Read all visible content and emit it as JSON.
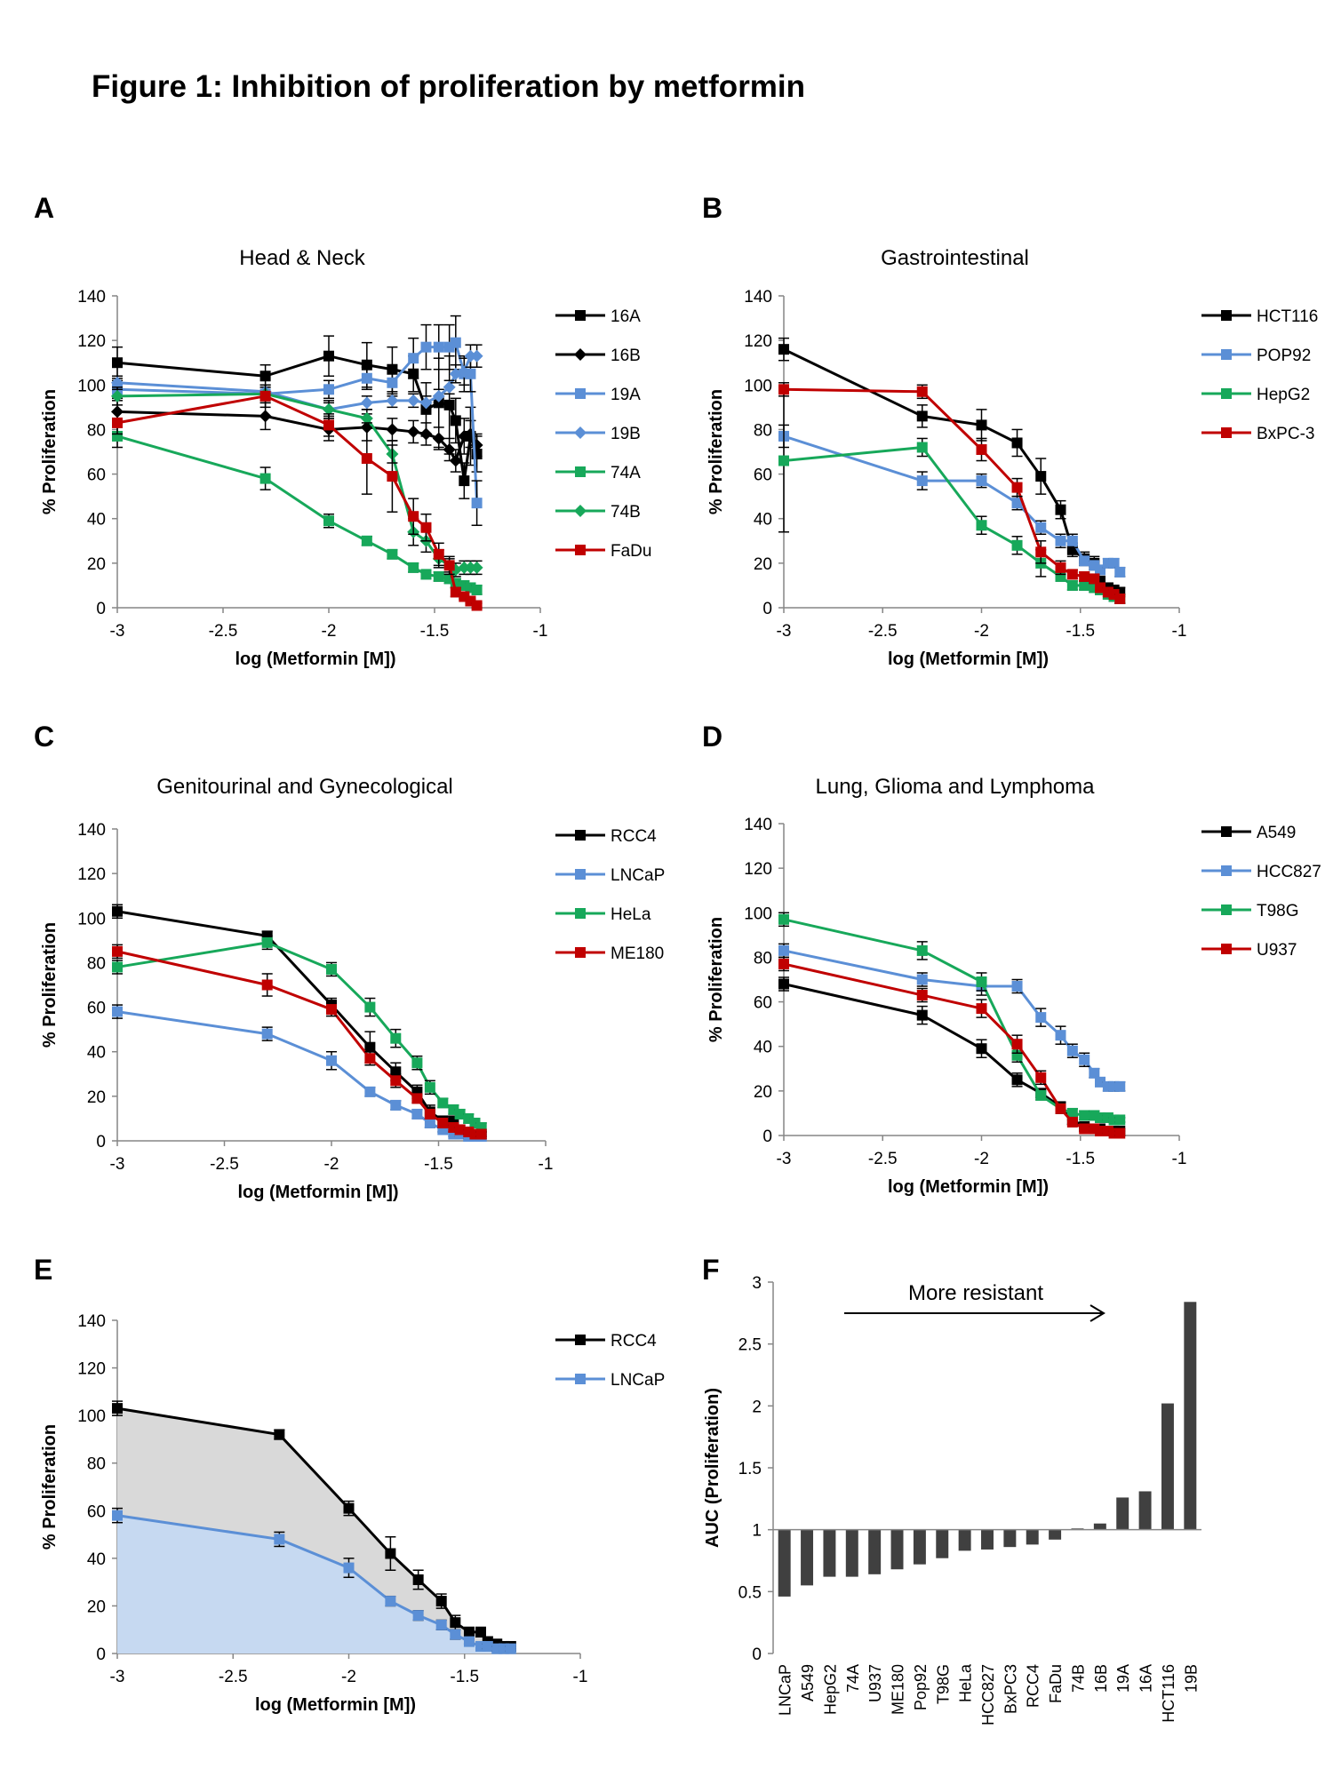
{
  "figure_title": "Figure 1: Inhibition of proliferation by metformin",
  "chart_data": [
    {
      "panel": "A",
      "type": "line",
      "title": "Head & Neck",
      "xlabel": "log (Metformin [M])",
      "ylabel": "% Proliferation",
      "xlim": [
        -3,
        -1
      ],
      "ylim": [
        0,
        140
      ],
      "xticks": [
        -3,
        -2.5,
        -2,
        -1.5,
        -1
      ],
      "yticks": [
        0,
        20,
        40,
        60,
        80,
        100,
        120,
        140
      ],
      "xtick_labels": [
        "-3",
        "-2.5",
        "-2",
        "-1.5",
        "-1"
      ],
      "ytick_labels": [
        "0",
        "20",
        "40",
        "60",
        "80",
        "100",
        "120",
        "140"
      ],
      "x": [
        -3,
        -2.3,
        -2,
        -1.82,
        -1.7,
        -1.6,
        -1.54,
        -1.48,
        -1.43,
        -1.4,
        -1.36,
        -1.33,
        -1.3
      ],
      "series": [
        {
          "name": "16A",
          "color": "#000000",
          "marker": "square",
          "values": [
            110,
            104,
            113,
            109,
            107,
            105,
            89,
            92,
            91,
            84,
            57,
            77,
            69
          ],
          "errors": [
            7,
            5,
            9,
            10,
            10,
            8,
            12,
            20,
            22,
            10,
            8,
            13,
            8
          ]
        },
        {
          "name": "16B",
          "color": "#000000",
          "marker": "diamond",
          "values": [
            88,
            86,
            80,
            81,
            80,
            79,
            78,
            76,
            71,
            66,
            77,
            78,
            73
          ],
          "errors": [
            5,
            6,
            5,
            6,
            5,
            5,
            5,
            5,
            5,
            5,
            8,
            6,
            5
          ]
        },
        {
          "name": "19A",
          "color": "#5B8FD6",
          "marker": "square",
          "values": [
            98,
            96,
            98,
            103,
            101,
            112,
            117,
            117,
            117,
            119,
            105,
            105,
            47
          ],
          "errors": [
            4,
            3,
            4,
            5,
            6,
            9,
            10,
            10,
            10,
            12,
            8,
            8,
            10
          ]
        },
        {
          "name": "19B",
          "color": "#5B8FD6",
          "marker": "diamond",
          "values": [
            101,
            97,
            89,
            92,
            93,
            93,
            92,
            95,
            99,
            105,
            106,
            113,
            113
          ],
          "errors": [
            3,
            3,
            3,
            3,
            3,
            3,
            3,
            3,
            3,
            4,
            6,
            5,
            5
          ]
        },
        {
          "name": "74A",
          "color": "#17A85A",
          "marker": "square",
          "values": [
            77,
            58,
            39,
            30,
            24,
            18,
            15,
            14,
            13,
            11,
            10,
            9,
            8
          ],
          "errors": [
            5,
            5,
            3,
            2,
            2,
            2,
            2,
            2,
            2,
            2,
            2,
            2,
            2
          ]
        },
        {
          "name": "74B",
          "color": "#17A85A",
          "marker": "diamond",
          "values": [
            95,
            96,
            89,
            85,
            69,
            34,
            30,
            22,
            19,
            17,
            18,
            18,
            18
          ],
          "errors": [
            4,
            4,
            4,
            4,
            4,
            6,
            5,
            4,
            3,
            3,
            3,
            3,
            3
          ]
        },
        {
          "name": "FaDu",
          "color": "#C00000",
          "marker": "square",
          "values": [
            83,
            95,
            82,
            67,
            59,
            41,
            36,
            24,
            19,
            7,
            5,
            3,
            1
          ],
          "errors": [
            5,
            5,
            5,
            16,
            16,
            8,
            6,
            5,
            4,
            2,
            1,
            1,
            1
          ]
        }
      ]
    },
    {
      "panel": "B",
      "type": "line",
      "title": "Gastrointestinal",
      "xlabel": "log (Metformin [M])",
      "ylabel": "% Proliferation",
      "xlim": [
        -3,
        -1
      ],
      "ylim": [
        0,
        140
      ],
      "xticks": [
        -3,
        -2.5,
        -2,
        -1.5,
        -1
      ],
      "yticks": [
        0,
        20,
        40,
        60,
        80,
        100,
        120,
        140
      ],
      "xtick_labels": [
        "-3",
        "-2.5",
        "-2",
        "-1.5",
        "-1"
      ],
      "ytick_labels": [
        "0",
        "20",
        "40",
        "60",
        "80",
        "100",
        "120",
        "140"
      ],
      "x": [
        -3,
        -2.3,
        -2,
        -1.82,
        -1.7,
        -1.6,
        -1.54,
        -1.48,
        -1.43,
        -1.4,
        -1.36,
        -1.33,
        -1.3
      ],
      "series": [
        {
          "name": "HCT116",
          "color": "#000000",
          "marker": "square",
          "values": [
            116,
            86,
            82,
            74,
            59,
            44,
            26,
            22,
            20,
            12,
            9,
            8,
            7
          ],
          "errors": [
            5,
            5,
            7,
            6,
            8,
            4,
            3,
            3,
            3,
            2,
            2,
            2,
            2
          ]
        },
        {
          "name": "POP92",
          "color": "#5B8FD6",
          "marker": "square",
          "values": [
            77,
            57,
            57,
            47,
            36,
            30,
            30,
            21,
            19,
            17,
            20,
            20,
            16
          ],
          "errors": [
            5,
            4,
            3,
            3,
            3,
            3,
            3,
            2,
            2,
            2,
            2,
            2,
            2
          ]
        },
        {
          "name": "HepG2",
          "color": "#17A85A",
          "marker": "square",
          "values": [
            66,
            72,
            37,
            28,
            20,
            14,
            10,
            10,
            9,
            8,
            6,
            5,
            4
          ],
          "errors": [
            32,
            4,
            4,
            4,
            6,
            2,
            2,
            2,
            2,
            2,
            2,
            2,
            2
          ]
        },
        {
          "name": "BxPC-3",
          "color": "#C00000",
          "marker": "square",
          "values": [
            98,
            97,
            71,
            54,
            25,
            18,
            15,
            14,
            13,
            9,
            7,
            6,
            4
          ],
          "errors": [
            3,
            3,
            5,
            4,
            5,
            3,
            2,
            2,
            2,
            2,
            2,
            2,
            2
          ]
        }
      ]
    },
    {
      "panel": "C",
      "type": "line",
      "title": "Genitourinal and Gynecological",
      "xlabel": "log (Metformin [M])",
      "ylabel": "% Proliferation",
      "xlim": [
        -3,
        -1
      ],
      "ylim": [
        0,
        140
      ],
      "xticks": [
        -3,
        -2.5,
        -2,
        -1.5,
        -1
      ],
      "yticks": [
        0,
        20,
        40,
        60,
        80,
        100,
        120,
        140
      ],
      "xtick_labels": [
        "-3",
        "-2.5",
        "-2",
        "-1.5",
        "-1"
      ],
      "ytick_labels": [
        "0",
        "20",
        "40",
        "60",
        "80",
        "100",
        "120",
        "140"
      ],
      "x": [
        -3,
        -2.3,
        -2,
        -1.82,
        -1.7,
        -1.6,
        -1.54,
        -1.48,
        -1.43,
        -1.4,
        -1.36,
        -1.33,
        -1.3
      ],
      "series": [
        {
          "name": "RCC4",
          "color": "#000000",
          "marker": "square",
          "values": [
            103,
            92,
            61,
            42,
            31,
            22,
            13,
            9,
            9,
            5,
            4,
            3,
            3
          ],
          "errors": [
            3,
            2,
            3,
            7,
            4,
            3,
            3,
            2,
            2,
            2,
            1,
            1,
            1
          ]
        },
        {
          "name": "LNCaP",
          "color": "#5B8FD6",
          "marker": "square",
          "values": [
            58,
            48,
            36,
            22,
            16,
            12,
            8,
            5,
            3,
            3,
            2,
            2,
            2
          ],
          "errors": [
            3,
            3,
            4,
            2,
            2,
            2,
            2,
            1,
            1,
            1,
            1,
            1,
            1
          ]
        },
        {
          "name": "HeLa",
          "color": "#17A85A",
          "marker": "square",
          "values": [
            78,
            89,
            77,
            60,
            46,
            35,
            24,
            17,
            14,
            12,
            10,
            8,
            6
          ],
          "errors": [
            3,
            3,
            3,
            4,
            4,
            3,
            3,
            2,
            2,
            2,
            2,
            2,
            2
          ]
        },
        {
          "name": "ME180",
          "color": "#C00000",
          "marker": "square",
          "values": [
            85,
            70,
            59,
            37,
            27,
            19,
            12,
            8,
            6,
            5,
            4,
            3,
            3
          ],
          "errors": [
            3,
            5,
            3,
            3,
            3,
            2,
            2,
            2,
            1,
            1,
            1,
            1,
            1
          ]
        }
      ]
    },
    {
      "panel": "D",
      "type": "line",
      "title": "Lung, Glioma and Lymphoma",
      "xlabel": "log (Metformin [M])",
      "ylabel": "% Proliferation",
      "xlim": [
        -3,
        -1
      ],
      "ylim": [
        0,
        140
      ],
      "xticks": [
        -3,
        -2.5,
        -2,
        -1.5,
        -1
      ],
      "yticks": [
        0,
        20,
        40,
        60,
        80,
        100,
        120,
        140
      ],
      "xtick_labels": [
        "-3",
        "-2.5",
        "-2",
        "-1.5",
        "-1"
      ],
      "ytick_labels": [
        "0",
        "20",
        "40",
        "60",
        "80",
        "100",
        "120",
        "140"
      ],
      "x": [
        -3,
        -2.3,
        -2,
        -1.82,
        -1.7,
        -1.6,
        -1.54,
        -1.48,
        -1.43,
        -1.4,
        -1.36,
        -1.33,
        -1.3
      ],
      "series": [
        {
          "name": "A549",
          "color": "#000000",
          "marker": "square",
          "values": [
            68,
            54,
            39,
            25,
            19,
            13,
            7,
            4,
            3,
            3,
            2,
            2,
            2
          ],
          "errors": [
            3,
            4,
            4,
            3,
            2,
            2,
            2,
            1,
            1,
            1,
            1,
            1,
            1
          ]
        },
        {
          "name": "HCC827",
          "color": "#5B8FD6",
          "marker": "square",
          "values": [
            83,
            70,
            67,
            67,
            53,
            45,
            38,
            34,
            28,
            24,
            22,
            22,
            22
          ],
          "errors": [
            3,
            3,
            4,
            3,
            4,
            4,
            3,
            3,
            2,
            2,
            2,
            2,
            2
          ]
        },
        {
          "name": "T98G",
          "color": "#17A85A",
          "marker": "square",
          "values": [
            97,
            83,
            69,
            36,
            18,
            12,
            10,
            9,
            9,
            8,
            8,
            7,
            7
          ],
          "errors": [
            3,
            4,
            4,
            3,
            2,
            2,
            2,
            2,
            2,
            2,
            1,
            1,
            1
          ]
        },
        {
          "name": "U937",
          "color": "#C00000",
          "marker": "square",
          "values": [
            77,
            63,
            57,
            41,
            26,
            12,
            6,
            3,
            3,
            2,
            2,
            1,
            1
          ],
          "errors": [
            3,
            3,
            4,
            4,
            3,
            2,
            1,
            1,
            1,
            1,
            1,
            1,
            1
          ]
        }
      ]
    },
    {
      "panel": "E",
      "type": "area",
      "title": "",
      "xlabel": "log (Metformin [M])",
      "ylabel": "% Proliferation",
      "xlim": [
        -3,
        -1
      ],
      "ylim": [
        0,
        140
      ],
      "xticks": [
        -3,
        -2.5,
        -2,
        -1.5,
        -1
      ],
      "yticks": [
        0,
        20,
        40,
        60,
        80,
        100,
        120,
        140
      ],
      "xtick_labels": [
        "-3",
        "-2.5",
        "-2",
        "-1.5",
        "-1"
      ],
      "ytick_labels": [
        "0",
        "20",
        "40",
        "60",
        "80",
        "100",
        "120",
        "140"
      ],
      "x": [
        -3,
        -2.3,
        -2,
        -1.82,
        -1.7,
        -1.6,
        -1.54,
        -1.48,
        -1.43,
        -1.4,
        -1.36,
        -1.33,
        -1.3
      ],
      "series": [
        {
          "name": "RCC4",
          "color": "#000000",
          "marker": "square",
          "fill": "#D9D9D9",
          "values": [
            103,
            92,
            61,
            42,
            31,
            22,
            13,
            9,
            9,
            5,
            4,
            3,
            3
          ],
          "errors": [
            3,
            2,
            3,
            7,
            4,
            3,
            3,
            2,
            2,
            2,
            1,
            1,
            1
          ]
        },
        {
          "name": "LNCaP",
          "color": "#5B8FD6",
          "marker": "square",
          "fill": "#C6D9F1",
          "values": [
            58,
            48,
            36,
            22,
            16,
            12,
            8,
            5,
            3,
            3,
            2,
            2,
            2
          ],
          "errors": [
            3,
            3,
            4,
            2,
            2,
            2,
            2,
            1,
            1,
            1,
            1,
            1,
            1
          ]
        }
      ]
    },
    {
      "panel": "F",
      "type": "bar",
      "title": "",
      "annotation": "More resistant",
      "xlabel": "",
      "ylabel": "AUC (Proliferation)",
      "ylim": [
        0,
        3
      ],
      "baseline": 1,
      "yticks": [
        0,
        0.5,
        1,
        1.5,
        2,
        2.5,
        3
      ],
      "ytick_labels": [
        "0",
        "0.5",
        "1",
        "1.5",
        "2",
        "2.5",
        "3"
      ],
      "bar_color": "#404040",
      "categories": [
        "LNCaP",
        "A549",
        "HepG2",
        "74A",
        "U937",
        "ME180",
        "Pop92",
        "T98G",
        "HeLa",
        "HCC827",
        "BxPC3",
        "RCC4",
        "FaDu",
        "74B",
        "16B",
        "19A",
        "16A",
        "HCT116",
        "19B"
      ],
      "values": [
        0.46,
        0.55,
        0.62,
        0.62,
        0.64,
        0.68,
        0.72,
        0.77,
        0.83,
        0.84,
        0.86,
        0.88,
        0.92,
        1.01,
        1.05,
        1.26,
        1.31,
        2.02,
        2.84
      ]
    }
  ]
}
